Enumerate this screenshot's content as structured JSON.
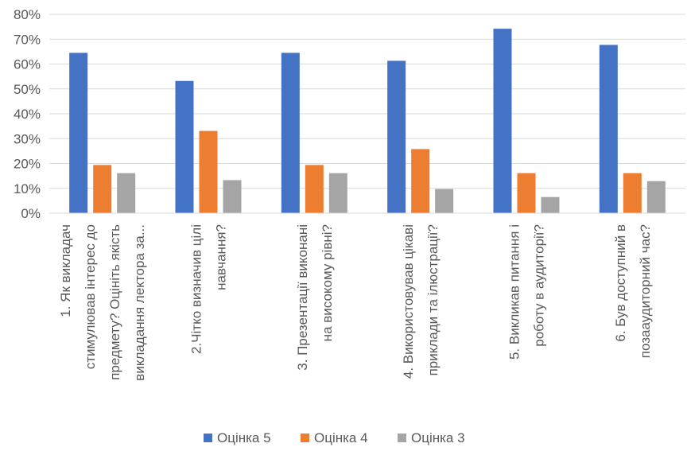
{
  "chart_data": {
    "type": "bar",
    "title": "",
    "xlabel": "",
    "ylabel": "",
    "ylim": [
      0,
      0.8
    ],
    "yticks": [
      0,
      0.1,
      0.2,
      0.3,
      0.4,
      0.5,
      0.6,
      0.7,
      0.8
    ],
    "ytick_labels": [
      "0%",
      "10%",
      "20%",
      "30%",
      "40%",
      "50%",
      "60%",
      "70%",
      "80%"
    ],
    "grid": "horizontal",
    "legend_position": "bottom",
    "categories": [
      [
        "1. Як викладач",
        "стимулював інтерес до",
        "предмету? Оцініть якість",
        "викладання лектора за..."
      ],
      [
        "2.Чітко визначив цілі",
        "навчання?"
      ],
      [
        "3. Презентації виконані",
        "на високому рівні?"
      ],
      [
        "4. Використовував цікаві",
        "приклади та ілюстрації?"
      ],
      [
        "5. Викликав питання і",
        "роботу в аудиторії?"
      ],
      [
        "6. Був доступний в",
        "позааудиторний час?"
      ]
    ],
    "series": [
      {
        "name": "Оцінка 5",
        "color": "#4472C4",
        "values": [
          0.645,
          0.532,
          0.645,
          0.613,
          0.742,
          0.677
        ]
      },
      {
        "name": "Оцінка 4",
        "color": "#ED7D31",
        "values": [
          0.194,
          0.331,
          0.194,
          0.258,
          0.161,
          0.161
        ]
      },
      {
        "name": "Оцінка 3",
        "color": "#A5A5A5",
        "values": [
          0.161,
          0.133,
          0.161,
          0.097,
          0.065,
          0.129
        ]
      }
    ]
  }
}
